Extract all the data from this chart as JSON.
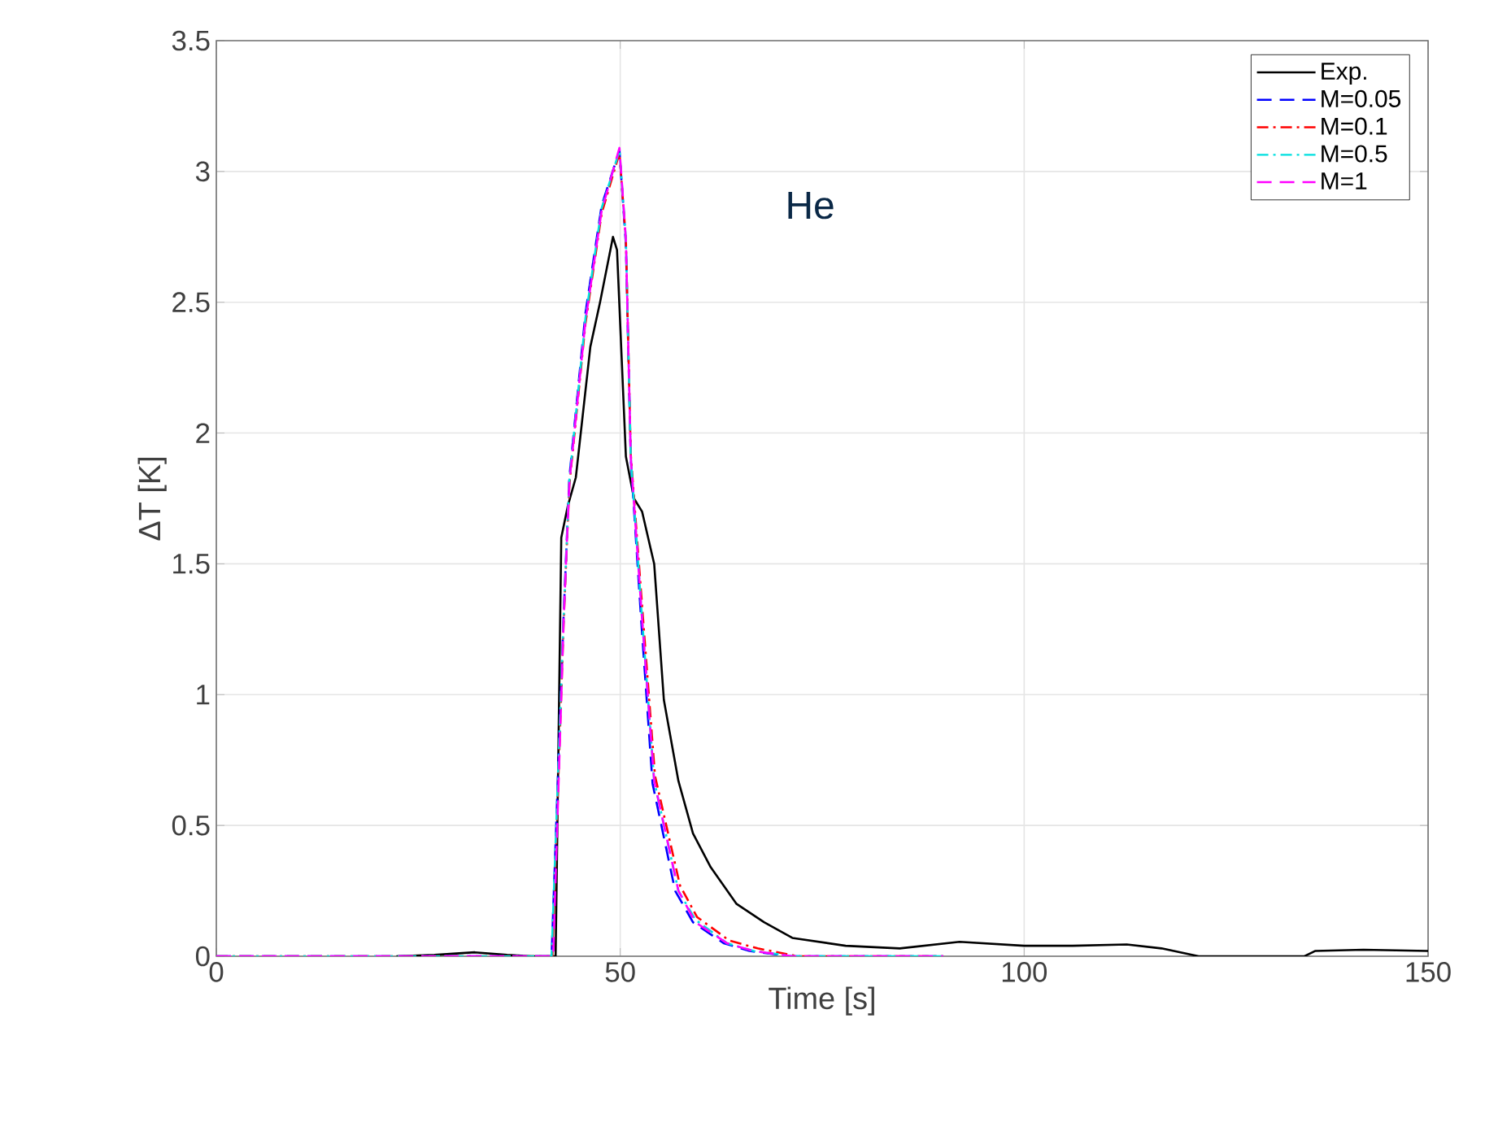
{
  "chart_data": {
    "type": "line",
    "xlabel": "Time [s]",
    "ylabel": "ΔT [K]",
    "annotations": [
      "He"
    ],
    "xlim": [
      0,
      150
    ],
    "ylim": [
      0,
      3.5
    ],
    "xticks": [
      0,
      50,
      100,
      150
    ],
    "yticks": [
      0,
      0.5,
      1,
      1.5,
      2,
      2.5,
      3,
      3.5
    ],
    "grid": true,
    "legend": "top right",
    "series": [
      {
        "name": "Exp.",
        "color": "#000000",
        "line_style": "solid",
        "x": [
          22.3,
          27,
          32,
          36,
          39,
          40,
          42,
          42.7,
          43.5,
          44.5,
          46.3,
          47.5,
          49.1,
          49.6,
          50.7,
          51.7,
          52.7,
          54.2,
          55.4,
          57.2,
          59,
          61.2,
          64.4,
          67.8,
          71.3,
          77.9,
          84.6,
          92,
          100,
          106,
          112.7,
          117,
          121.6,
          128,
          134.7,
          136,
          142,
          150
        ],
        "values": [
          0,
          0.005,
          0.015,
          0.005,
          0,
          0,
          0,
          1.6,
          1.72,
          1.83,
          2.33,
          2.5,
          2.75,
          2.7,
          1.91,
          1.75,
          1.7,
          1.5,
          0.98,
          0.67,
          0.47,
          0.34,
          0.2,
          0.13,
          0.07,
          0.04,
          0.03,
          0.055,
          0.04,
          0.04,
          0.045,
          0.03,
          0,
          0,
          0,
          0.02,
          0.025,
          0.02
        ]
      },
      {
        "name": "M=0.05",
        "color": "#0000ff",
        "line_style": "dashed",
        "x": [
          0,
          41.5,
          43,
          43.7,
          45.7,
          47.7,
          49.9,
          50.7,
          51.3,
          52.6,
          54,
          56.8,
          59,
          62.8,
          66,
          71,
          90
        ],
        "values": [
          0,
          0,
          1.31,
          1.83,
          2.46,
          2.87,
          3.08,
          2.72,
          1.9,
          1.28,
          0.66,
          0.25,
          0.13,
          0.05,
          0.02,
          0,
          0
        ]
      },
      {
        "name": "M=0.1",
        "color": "#ff0000",
        "line_style": "dashdot",
        "x": [
          0,
          41.6,
          43,
          43.7,
          45.7,
          47.7,
          49.9,
          50.7,
          51.3,
          52.8,
          54.3,
          57.4,
          59.5,
          63.5,
          67,
          72,
          90
        ],
        "values": [
          0,
          0,
          1.28,
          1.8,
          2.42,
          2.84,
          3.07,
          2.74,
          1.92,
          1.3,
          0.69,
          0.27,
          0.15,
          0.06,
          0.03,
          0,
          0
        ]
      },
      {
        "name": "M=0.5",
        "color": "#00e0e0",
        "line_style": "dashdot",
        "x": [
          0,
          41.5,
          43,
          43.7,
          45.7,
          47.7,
          49.9,
          50.7,
          51.3,
          52.7,
          54.2,
          57.2,
          59.3,
          63.2,
          66.5,
          71.5,
          90
        ],
        "values": [
          0,
          0,
          1.3,
          1.82,
          2.44,
          2.86,
          3.08,
          2.74,
          1.91,
          1.29,
          0.67,
          0.25,
          0.14,
          0.05,
          0.02,
          0,
          0
        ]
      },
      {
        "name": "M=1",
        "color": "#ff00ff",
        "line_style": "dashed",
        "x": [
          0,
          41.7,
          43,
          43.7,
          45.7,
          47.7,
          49.9,
          50.7,
          51.3,
          52.7,
          54.2,
          57.2,
          59.3,
          63.2,
          66.5,
          71.3,
          90
        ],
        "values": [
          0,
          0,
          1.29,
          1.81,
          2.43,
          2.85,
          3.09,
          2.74,
          1.91,
          1.29,
          0.67,
          0.25,
          0.13,
          0.05,
          0.02,
          0,
          0
        ]
      }
    ]
  }
}
